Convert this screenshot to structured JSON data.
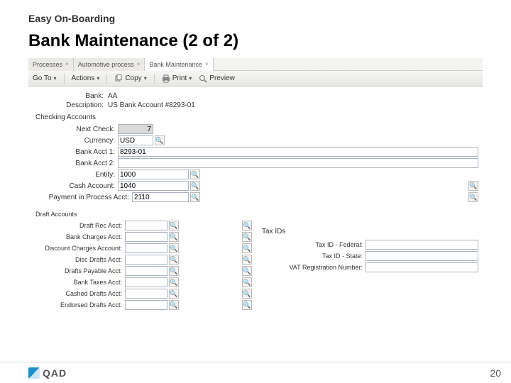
{
  "slide": {
    "super_title": "Easy On-Boarding",
    "title": "Bank Maintenance (2 of 2)",
    "page_number": "20",
    "logo_text": "QAD"
  },
  "tabs": [
    {
      "label": "Processes",
      "active": false
    },
    {
      "label": "Automotive process",
      "active": false
    },
    {
      "label": "Bank Maintenance",
      "active": true
    }
  ],
  "toolbar": {
    "go_to": "Go To",
    "actions": "Actions",
    "copy": "Copy",
    "print": "Print",
    "preview": "Preview"
  },
  "info": {
    "bank_label": "Bank:",
    "bank_value": "AA",
    "desc_label": "Description:",
    "desc_value": "US Bank Account #8293-01"
  },
  "checking": {
    "section": "Checking Accounts",
    "next_check_label": "Next Check:",
    "next_check_value": "7",
    "currency_label": "Currency:",
    "currency_value": "USD",
    "acct1_label": "Bank Acct 1:",
    "acct1_value": "8293-01",
    "acct2_label": "Bank Acct 2:",
    "acct2_value": "",
    "entity_label": "Entity:",
    "entity_value": "1000",
    "cash_label": "Cash Account:",
    "cash_value": "1040",
    "pip_label": "Payment in Process Acct:",
    "pip_value": "2110"
  },
  "draft": {
    "section": "Draft Accounts",
    "rows": [
      "Draft Rec Acct:",
      "Bank Charges Acct:",
      "Discount Charges Account:",
      "Disc Drafts Acct:",
      "Drafts Payable Acct:",
      "Bank Taxes Acct:",
      "Cashed Drafts Acct:",
      "Endorsed Drafts Acct:"
    ]
  },
  "tax": {
    "section": "Tax IDs",
    "federal_label": "Tax ID - Federal:",
    "state_label": "Tax ID - State:",
    "vat_label": "VAT Registration Number:"
  },
  "colors": {
    "toolbar_top": "#f6f6f4",
    "toolbar_bottom": "#e7e7e4",
    "border": "#a9b2bd",
    "lookup_blue": "#2a5a8e"
  }
}
